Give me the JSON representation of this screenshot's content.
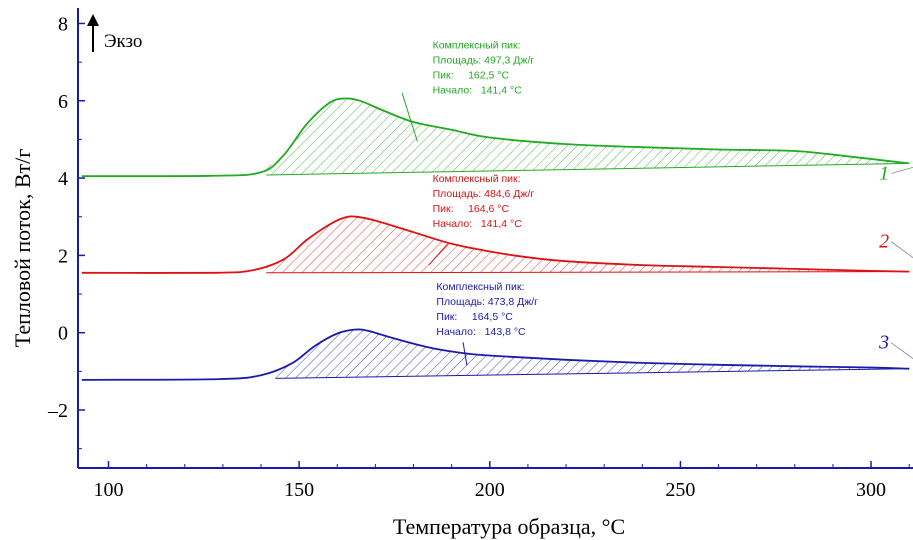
{
  "chart_data": {
    "type": "line",
    "xlabel": "Температура образца, °C",
    "ylabel": "Тепловой поток, Вт/г",
    "exo_label": "Экзо",
    "xlim": [
      92,
      311
    ],
    "ylim": [
      -3.5,
      8.4
    ],
    "x_ticks": [
      100,
      150,
      200,
      250,
      300
    ],
    "x_tick_labels": [
      "100",
      "150",
      "200",
      "250",
      "300"
    ],
    "y_ticks": [
      8,
      6,
      4,
      2,
      0,
      -2
    ],
    "y_tick_labels": [
      "8",
      "6",
      "4",
      "2",
      "0",
      "–2"
    ],
    "colors": {
      "1": "#22aa22",
      "2": "#dd1111",
      "3": "#1a1aaa"
    },
    "series": [
      {
        "label": "1",
        "color": "#22aa22",
        "x": [
          93,
          127,
          140,
          146,
          152,
          158,
          162,
          166,
          172,
          180,
          190,
          200,
          220,
          240,
          260,
          280,
          295,
          310
        ],
        "y": [
          4.05,
          4.06,
          4.15,
          4.6,
          5.4,
          5.95,
          6.06,
          6.0,
          5.75,
          5.45,
          5.25,
          5.05,
          4.88,
          4.8,
          4.74,
          4.7,
          4.55,
          4.38
        ],
        "baseline_x": [
          141.4,
          310
        ],
        "baseline_y": [
          4.08,
          4.38
        ]
      },
      {
        "label": "2",
        "color": "#dd1111",
        "x": [
          93,
          128,
          138,
          146,
          152,
          158,
          162,
          165,
          170,
          180,
          190,
          200,
          210,
          220,
          240,
          260,
          280,
          300,
          310
        ],
        "y": [
          1.55,
          1.55,
          1.62,
          1.9,
          2.4,
          2.8,
          2.98,
          3.0,
          2.9,
          2.6,
          2.3,
          2.1,
          1.95,
          1.85,
          1.75,
          1.7,
          1.65,
          1.6,
          1.58
        ],
        "baseline_x": [
          141.4,
          310
        ],
        "baseline_y": [
          1.55,
          1.58
        ]
      },
      {
        "label": "3",
        "color": "#1a1aaa",
        "x": [
          93,
          129,
          140,
          148,
          154,
          160,
          164.5,
          168,
          175,
          185,
          195,
          205,
          220,
          240,
          260,
          280,
          300,
          310
        ],
        "y": [
          -1.22,
          -1.2,
          -1.1,
          -0.8,
          -0.35,
          -0.02,
          0.08,
          0.05,
          -0.15,
          -0.4,
          -0.55,
          -0.62,
          -0.7,
          -0.78,
          -0.83,
          -0.87,
          -0.9,
          -0.93
        ],
        "baseline_x": [
          143.8,
          310
        ],
        "baseline_y": [
          -1.18,
          -0.93
        ]
      }
    ],
    "annotations": [
      {
        "lines": [
          "Комплексный пик:",
          "Площадь: 497,3 Дж/г",
          "Пик:     162,5 °C",
          "Начало:   141,4 °C"
        ],
        "color": "#22aa22",
        "x": 185,
        "y": 7.35,
        "leader_x": [
          177,
          181
        ],
        "leader_y": [
          6.2,
          4.95
        ]
      },
      {
        "lines": [
          "Комплексный пик:",
          "Площадь: 484,6 Дж/г",
          "Пик:     164,6 °C",
          "Начало:   141,4 °C"
        ],
        "color": "#dd1111",
        "x": 185,
        "y": 3.9,
        "leader_x": [
          189,
          184
        ],
        "leader_y": [
          2.3,
          1.75
        ]
      },
      {
        "lines": [
          "Комплексный пик:",
          "Площадь: 473,8 Дж/г",
          "Пик:     164,5 °C",
          "Начало:   143,8 °C"
        ],
        "color": "#1a1aaa",
        "x": 186,
        "y": 1.1,
        "leader_x": [
          193,
          194
        ],
        "leader_y": [
          -0.25,
          -0.85
        ]
      }
    ]
  }
}
